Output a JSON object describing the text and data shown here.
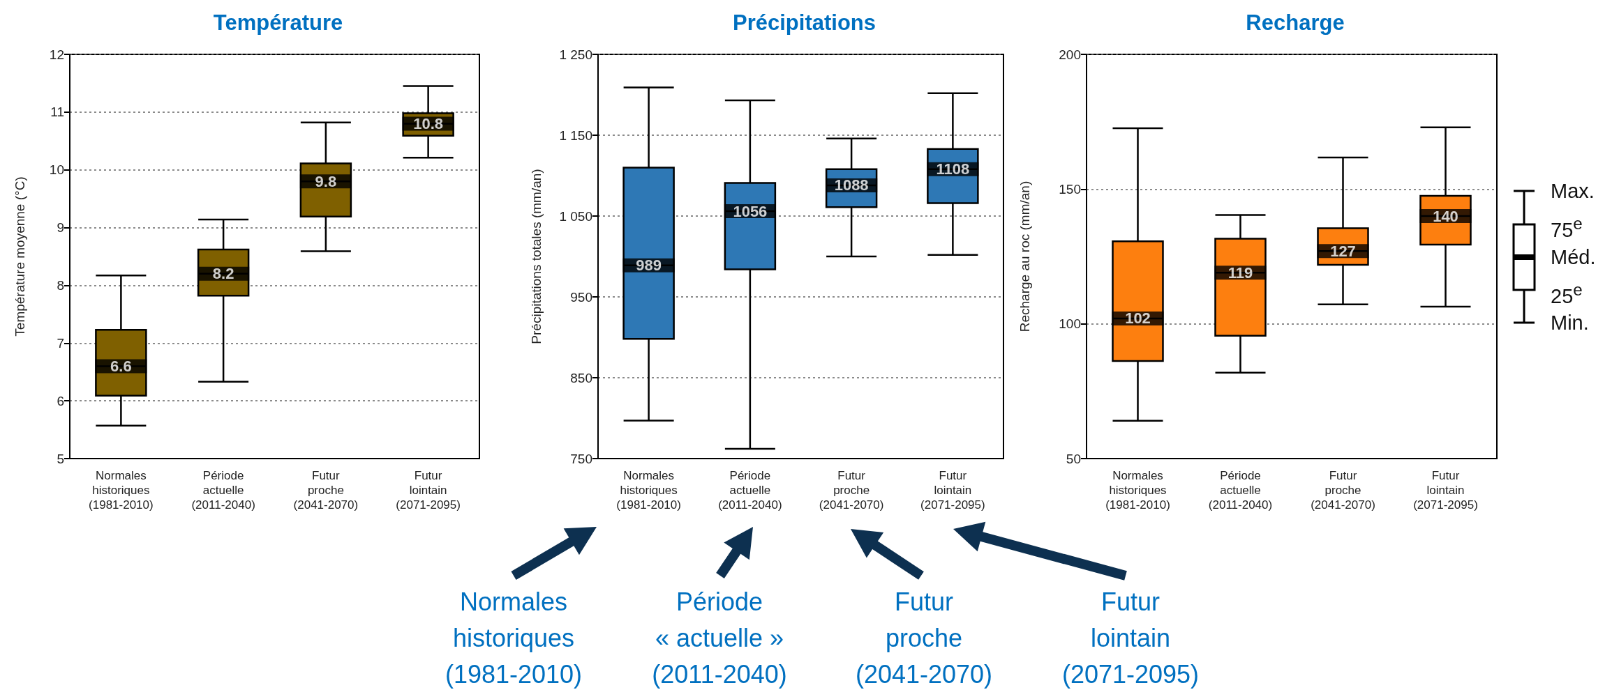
{
  "chart_data": [
    {
      "type": "box",
      "title": "Température",
      "ylabel": "Température moyenne (°C)",
      "categories": [
        "Normales\nhistoriques\n(1981-2010)",
        "Période\nactuelle\n(2011-2040)",
        "Futur\nproche\n(2041-2070)",
        "Futur\nlointain\n(2071-2095)"
      ],
      "color": "#7f6000",
      "boxes": [
        {
          "low": 5.57,
          "q1": 6.09,
          "median": 6.6,
          "q3": 7.23,
          "high": 8.17
        },
        {
          "low": 6.33,
          "q1": 7.82,
          "median": 8.2,
          "q3": 8.62,
          "high": 9.14
        },
        {
          "low": 8.59,
          "q1": 9.19,
          "median": 9.8,
          "q3": 10.11,
          "high": 10.82
        },
        {
          "low": 10.21,
          "q1": 10.59,
          "median": 10.8,
          "q3": 10.98,
          "high": 11.45
        }
      ],
      "ylim": [
        5,
        12
      ],
      "yticks": [
        5,
        6,
        7,
        8,
        9,
        10,
        11,
        12
      ],
      "grid": "y",
      "value_labels": [
        "6.6",
        "8.2",
        "9.8",
        "10.8"
      ]
    },
    {
      "type": "box",
      "title": "Précipitations",
      "ylabel": "Précipitations totales (mm/an)",
      "categories": [
        "Normales\nhistoriques\n(1981-2010)",
        "Période\nactuelle\n(2011-2040)",
        "Futur\nproche\n(2041-2070)",
        "Futur\nlointain\n(2071-2095)"
      ],
      "color": "#2e78b5",
      "boxes": [
        {
          "low": 797,
          "q1": 898,
          "median": 989,
          "q3": 1110,
          "high": 1209
        },
        {
          "low": 762,
          "q1": 984,
          "median": 1056,
          "q3": 1091,
          "high": 1193
        },
        {
          "low": 1000,
          "q1": 1061,
          "median": 1088,
          "q3": 1108,
          "high": 1146
        },
        {
          "low": 1002,
          "q1": 1066,
          "median": 1108,
          "q3": 1133,
          "high": 1202
        }
      ],
      "ylim": [
        750,
        1250
      ],
      "yticks": [
        750,
        850,
        950,
        {
          "value": 1050,
          "label": "1 050"
        },
        {
          "value": 1150,
          "label": "1 150"
        },
        {
          "value": 1250,
          "label": "1 250"
        }
      ],
      "grid": "y",
      "value_labels": [
        "989",
        "1056",
        "1088",
        "1108"
      ],
      "annotations": [
        "Normales\nhistoriques\n(1981-2010)",
        "Période\n« actuelle »\n(2011-2040)",
        "Futur\nproche\n(2041-2070)",
        "Futur\nlointain\n(2071-2095)"
      ]
    },
    {
      "type": "box",
      "title": "Recharge",
      "ylabel": "Recharge au roc (mm/an)",
      "categories": [
        "Normales\nhistoriques\n(1981-2010)",
        "Période\nactuelle\n(2011-2040)",
        "Futur\nproche\n(2041-2070)",
        "Futur\nlointain\n(2071-2095)"
      ],
      "color": "#fd7f0f",
      "boxes": [
        {
          "low": 64,
          "q1": 86.2,
          "median": 102,
          "q3": 130.6,
          "high": 172.6
        },
        {
          "low": 81.9,
          "q1": 95.6,
          "median": 119,
          "q3": 131.6,
          "high": 140.4
        },
        {
          "low": 107.2,
          "q1": 121.9,
          "median": 127,
          "q3": 135.5,
          "high": 161.7
        },
        {
          "low": 106.4,
          "q1": 129.4,
          "median": 140,
          "q3": 147.5,
          "high": 172.9
        }
      ],
      "ylim": [
        50,
        200
      ],
      "yticks": [
        50,
        100,
        150,
        200
      ],
      "grid": "y",
      "value_labels": [
        "102",
        "119",
        "127",
        "140"
      ],
      "annotations": [
        "Max.",
        "75$^{e}$",
        "Méd.",
        "25$^{e}$",
        "Min."
      ]
    }
  ]
}
